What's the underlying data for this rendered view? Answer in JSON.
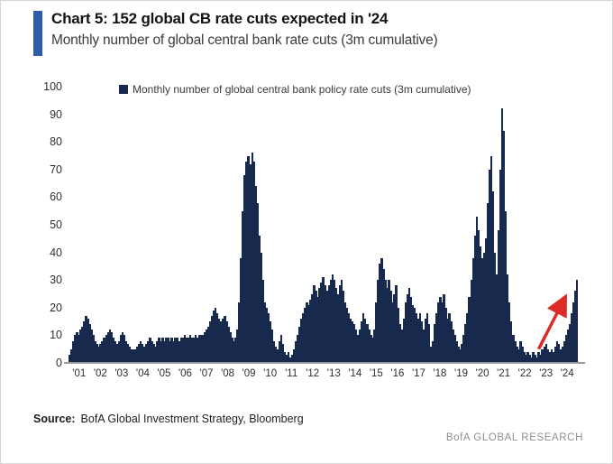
{
  "header": {
    "title": "Chart 5: 152 global CB rate cuts expected in '24",
    "subtitle": "Monthly number of global central bank rate cuts (3m cumulative)"
  },
  "colors": {
    "accent_blue": "#2e5dad",
    "bar_navy": "#172a4d",
    "arrow_red": "#dd2b27",
    "axis_text": "#2e2e2e",
    "brand_gray": "#8f8f8f"
  },
  "chart_data": {
    "type": "bar",
    "title": "Chart 5: 152 global CB rate cuts expected in '24",
    "subtitle": "Monthly number of global central bank rate cuts (3m cumulative)",
    "legend": [
      "Monthly number of global central bank policy rate cuts (3m cumulative)"
    ],
    "legend_position": "top",
    "grid": false,
    "ylim": [
      0,
      100
    ],
    "y_ticks": [
      0,
      10,
      20,
      30,
      40,
      50,
      60,
      70,
      80,
      90,
      100
    ],
    "x_tick_labels": [
      "'01",
      "'02",
      "'03",
      "'04",
      "'05",
      "'06",
      "'07",
      "'08",
      "'09",
      "'10",
      "'11",
      "'12",
      "'13",
      "'14",
      "'15",
      "'16",
      "'17",
      "'18",
      "'19",
      "'20",
      "'21",
      "'22",
      "'23",
      "'24"
    ],
    "x_start": "2001-01",
    "x_frequency": "monthly",
    "series": [
      {
        "name": "Monthly number of global central bank policy rate cuts (3m cumulative)",
        "values": [
          3,
          5,
          8,
          10,
          11,
          10,
          12,
          13,
          15,
          17,
          16,
          14,
          12,
          10,
          8,
          7,
          6,
          7,
          8,
          9,
          10,
          11,
          12,
          11,
          9,
          8,
          7,
          8,
          10,
          11,
          10,
          8,
          7,
          6,
          5,
          5,
          5,
          6,
          7,
          8,
          7,
          6,
          7,
          8,
          9,
          8,
          7,
          6,
          8,
          9,
          8,
          9,
          8,
          9,
          9,
          8,
          9,
          8,
          9,
          9,
          8,
          9,
          9,
          10,
          9,
          9,
          10,
          9,
          9,
          10,
          9,
          10,
          10,
          10,
          11,
          12,
          13,
          15,
          17,
          19,
          20,
          18,
          16,
          15,
          16,
          17,
          15,
          13,
          11,
          9,
          8,
          9,
          12,
          22,
          38,
          55,
          68,
          73,
          75,
          72,
          76,
          73,
          64,
          58,
          46,
          40,
          30,
          22,
          20,
          18,
          15,
          12,
          8,
          6,
          5,
          8,
          10,
          7,
          4,
          3,
          4,
          2,
          3,
          5,
          8,
          10,
          13,
          16,
          18,
          20,
          22,
          21,
          23,
          25,
          28,
          26,
          24,
          27,
          29,
          31,
          28,
          26,
          28,
          30,
          32,
          30,
          27,
          25,
          28,
          30,
          26,
          22,
          20,
          18,
          16,
          15,
          14,
          12,
          10,
          12,
          15,
          18,
          16,
          14,
          12,
          10,
          9,
          12,
          22,
          30,
          36,
          38,
          34,
          30,
          27,
          30,
          26,
          22,
          25,
          28,
          20,
          14,
          12,
          16,
          22,
          25,
          27,
          24,
          21,
          20,
          18,
          16,
          18,
          15,
          12,
          16,
          18,
          14,
          6,
          8,
          14,
          18,
          22,
          24,
          22,
          25,
          20,
          16,
          18,
          15,
          12,
          10,
          8,
          6,
          5,
          7,
          10,
          14,
          18,
          24,
          30,
          38,
          46,
          53,
          48,
          42,
          38,
          40,
          45,
          58,
          70,
          75,
          62,
          40,
          32,
          48,
          70,
          92,
          84,
          55,
          32,
          22,
          15,
          10,
          8,
          6,
          5,
          8,
          6,
          4,
          3,
          4,
          3,
          2,
          4,
          3,
          2,
          4,
          3,
          5,
          6,
          7,
          5,
          4,
          5,
          4,
          6,
          8,
          7,
          5,
          6,
          8,
          10,
          12,
          14,
          18,
          22,
          26,
          30
        ]
      }
    ],
    "annotations": [
      {
        "type": "arrow",
        "color": "#dd2b27",
        "from": {
          "month": "2022-06",
          "value": 5
        },
        "to": {
          "month": "2023-08",
          "value": 23
        },
        "meaning": "surge toward 152 expected global rate cuts in 2024"
      }
    ]
  },
  "footer": {
    "source_label": "Source:",
    "source_text": "BofA Global Investment Strategy, Bloomberg",
    "brand": "BofA GLOBAL RESEARCH"
  }
}
